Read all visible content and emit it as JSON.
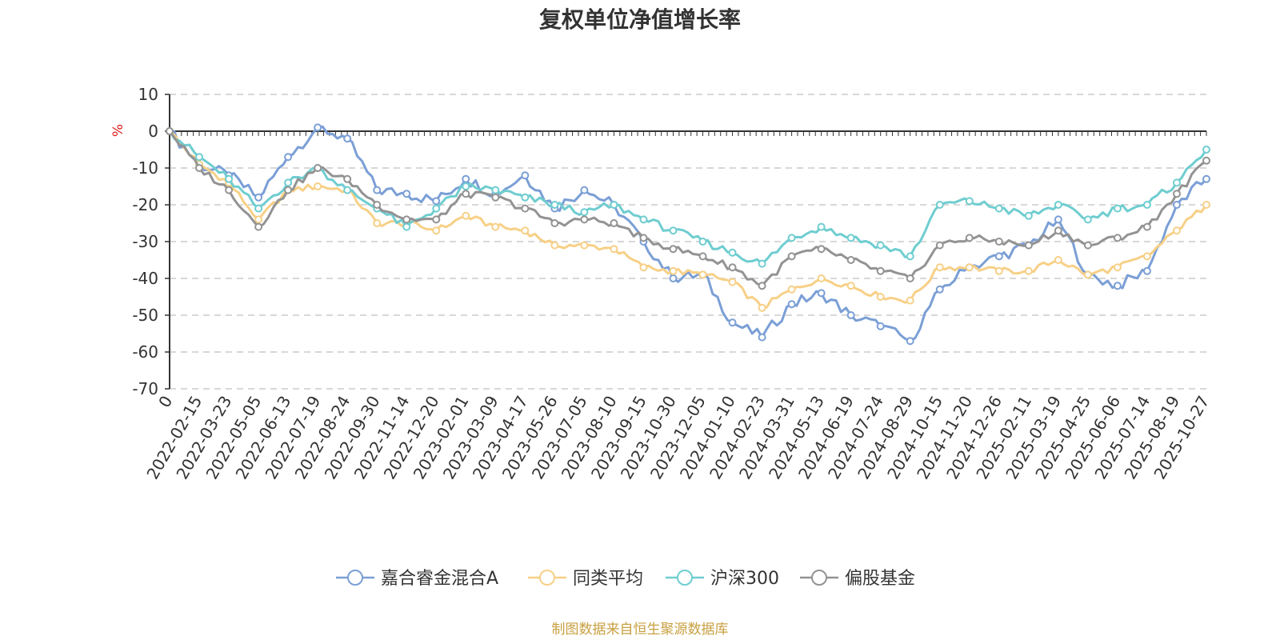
{
  "chart_data": {
    "type": "line",
    "title": "复权单位净值增长率",
    "ylabel": "%",
    "ylim": [
      -70,
      10
    ],
    "yticks": [
      10,
      0,
      -10,
      -20,
      -30,
      -40,
      -50,
      -60,
      -70
    ],
    "grid": true,
    "legend_position": "bottom",
    "x": [
      "0",
      "2022-02-15",
      "2022-03-23",
      "2022-05-05",
      "2022-06-13",
      "2022-07-19",
      "2022-08-24",
      "2022-09-30",
      "2022-11-14",
      "2022-12-20",
      "2023-02-01",
      "2023-03-09",
      "2023-04-17",
      "2023-05-26",
      "2023-07-05",
      "2023-08-10",
      "2023-09-15",
      "2023-10-30",
      "2023-12-05",
      "2024-01-10",
      "2024-02-23",
      "2024-03-31",
      "2024-05-13",
      "2024-06-19",
      "2024-07-24",
      "2024-08-29",
      "2024-10-15",
      "2024-11-20",
      "2024-12-26",
      "2025-02-11",
      "2025-03-19",
      "2025-04-25",
      "2025-06-06",
      "2025-07-14",
      "2025-08-19",
      "2025-10-27"
    ],
    "series": [
      {
        "name": "嘉合睿金混合A",
        "color": "#7b9fd6",
        "values": [
          0,
          -9,
          -12,
          -18,
          -7,
          1,
          -2,
          -16,
          -17,
          -19,
          -13,
          -17,
          -12,
          -21,
          -16,
          -20,
          -30,
          -40,
          -39,
          -52,
          -56,
          -47,
          -44,
          -50,
          -53,
          -57,
          -43,
          -37,
          -34,
          -31,
          -24,
          -39,
          -42,
          -38,
          -20,
          -13
        ]
      },
      {
        "name": "同类平均",
        "color": "#f7d087",
        "values": [
          0,
          -9,
          -14,
          -24,
          -16,
          -15,
          -16,
          -25,
          -25,
          -27,
          -23,
          -26,
          -27,
          -31,
          -31,
          -32,
          -37,
          -38,
          -39,
          -41,
          -48,
          -43,
          -40,
          -42,
          -45,
          -46,
          -37,
          -37,
          -38,
          -38,
          -35,
          -39,
          -37,
          -34,
          -27,
          -20
        ]
      },
      {
        "name": "沪深300",
        "color": "#6fcdd0",
        "values": [
          0,
          -7,
          -13,
          -21,
          -14,
          -10,
          -16,
          -21,
          -26,
          -21,
          -15,
          -16,
          -18,
          -20,
          -22,
          -20,
          -24,
          -27,
          -30,
          -33,
          -36,
          -29,
          -26,
          -29,
          -31,
          -34,
          -20,
          -19,
          -21,
          -23,
          -20,
          -24,
          -21,
          -20,
          -14,
          -5
        ]
      },
      {
        "name": "偏股基金",
        "color": "#939393",
        "values": [
          0,
          -10,
          -16,
          -26,
          -16,
          -10,
          -13,
          -20,
          -24,
          -24,
          -17,
          -18,
          -21,
          -25,
          -24,
          -25,
          -29,
          -32,
          -34,
          -37,
          -42,
          -34,
          -32,
          -35,
          -38,
          -40,
          -31,
          -29,
          -30,
          -31,
          -27,
          -31,
          -29,
          -26,
          -17,
          -8
        ]
      }
    ]
  },
  "footer": {
    "source": "制图数据来自恒生聚源数据库"
  }
}
